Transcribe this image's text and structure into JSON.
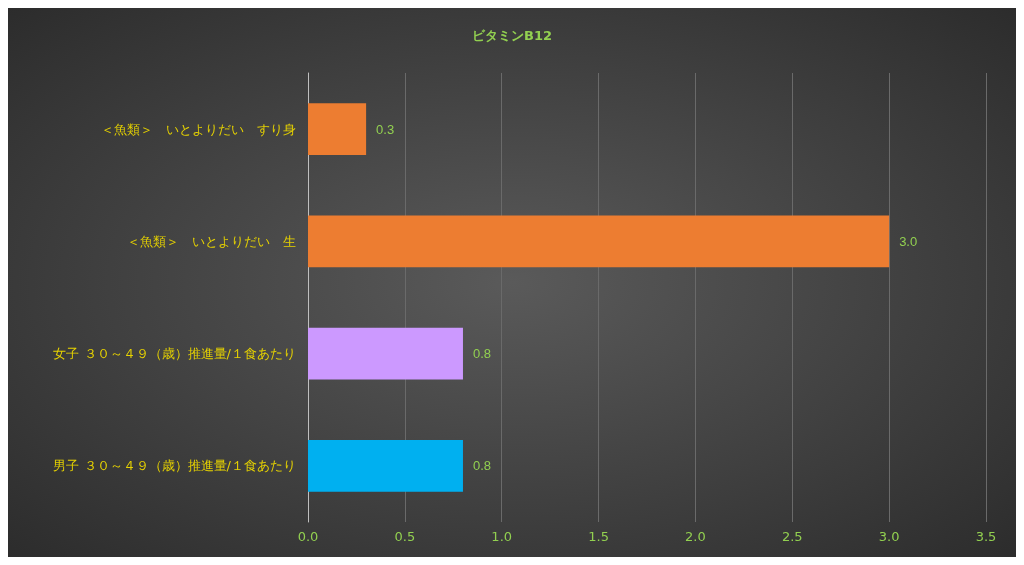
{
  "chart_data": {
    "type": "bar",
    "orientation": "horizontal",
    "title": "ビタミンB12",
    "categories": [
      "＜魚類＞　いとよりだい　すり身",
      "＜魚類＞　いとよりだい　生",
      "女子 ３０～４９（歳）推進量/１食あたり",
      "男子 ３０～４９（歳）推進量/１食あたり"
    ],
    "values": [
      0.3,
      3.0,
      0.8,
      0.8
    ],
    "colors": [
      "#ed7d31",
      "#ed7d31",
      "#cc99ff",
      "#00b0f0"
    ],
    "value_labels": [
      "0.3",
      "3.0",
      "0.8",
      "0.8"
    ],
    "xlim": [
      0,
      3.5
    ],
    "xticks": [
      {
        "value": 0,
        "label": "0.0"
      },
      {
        "value": 0.5,
        "label": "0.5"
      },
      {
        "value": 1,
        "label": "1.0"
      },
      {
        "value": 1.5,
        "label": "1.5"
      },
      {
        "value": 2,
        "label": "2.0"
      },
      {
        "value": 2.5,
        "label": "2.5"
      },
      {
        "value": 3,
        "label": "3.0"
      },
      {
        "value": 3.5,
        "label": "3.5"
      }
    ],
    "grid": "x"
  }
}
